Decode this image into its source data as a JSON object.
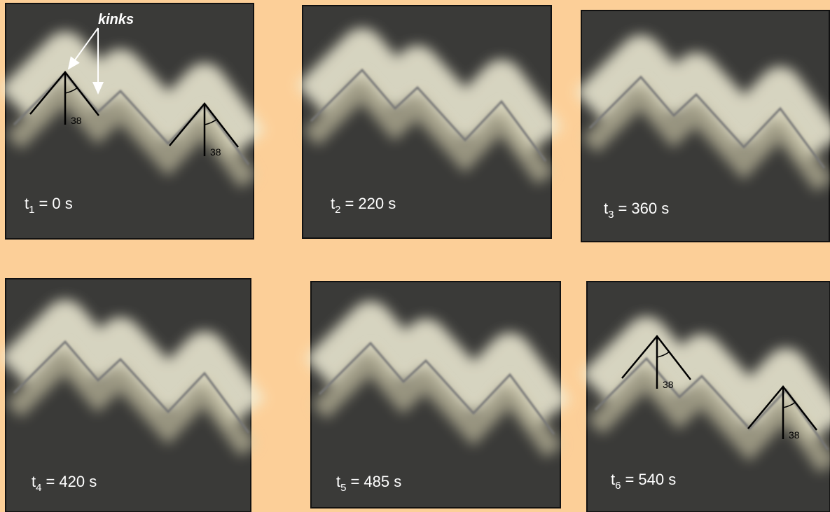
{
  "annotation": "kinks",
  "panels": [
    {
      "var": "t",
      "sub": "1",
      "time": "= 0 s",
      "angles": [
        "38",
        "38"
      ]
    },
    {
      "var": "t",
      "sub": "2",
      "time": "= 220 s"
    },
    {
      "var": "t",
      "sub": "3",
      "time": "= 360 s"
    },
    {
      "var": "t",
      "sub": "4",
      "time": "= 420 s"
    },
    {
      "var": "t",
      "sub": "5",
      "time": "= 485 s"
    },
    {
      "var": "t",
      "sub": "6",
      "time": "= 540 s",
      "angles": [
        "38",
        "38"
      ]
    }
  ]
}
